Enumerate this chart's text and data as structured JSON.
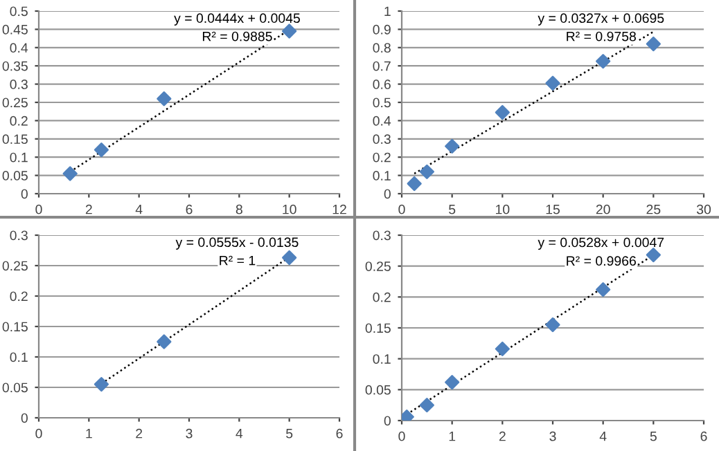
{
  "chart_data": [
    {
      "type": "scatter",
      "xlim": [
        0,
        12
      ],
      "xticks": [
        0,
        2,
        4,
        6,
        8,
        10,
        12
      ],
      "ylim": [
        0,
        0.5
      ],
      "yticks": [
        0,
        0.05,
        0.1,
        0.15,
        0.2,
        0.25,
        0.3,
        0.35,
        0.4,
        0.45,
        0.5
      ],
      "grid": "y",
      "marker": "diamond",
      "annotations": [
        "y = 0.0444x + 0.0045",
        "R² = 0.9885"
      ],
      "series": [
        {
          "color": "#4f81bd",
          "x": [
            1.25,
            2.5,
            5,
            10
          ],
          "values": [
            0.055,
            0.12,
            0.26,
            0.445
          ]
        },
        {
          "type": "line",
          "color": "#000000",
          "line_style": "dotted",
          "marker": "none",
          "x": [
            1.25,
            10
          ],
          "values": [
            0.06,
            0.449
          ]
        }
      ]
    },
    {
      "type": "scatter",
      "xlim": [
        0,
        30
      ],
      "xticks": [
        0,
        5,
        10,
        15,
        20,
        25,
        30
      ],
      "ylim": [
        0,
        1
      ],
      "yticks": [
        0,
        0.1,
        0.2,
        0.3,
        0.4,
        0.5,
        0.6,
        0.7,
        0.8,
        0.9,
        1
      ],
      "grid": "y",
      "marker": "diamond",
      "annotations": [
        "y = 0.0327x + 0.0695",
        "R² = 0.9758"
      ],
      "series": [
        {
          "color": "#4f81bd",
          "x": [
            1.25,
            2.5,
            5,
            10,
            15,
            20,
            25
          ],
          "values": [
            0.055,
            0.12,
            0.26,
            0.445,
            0.605,
            0.725,
            0.82
          ]
        },
        {
          "type": "line",
          "color": "#000000",
          "line_style": "dotted",
          "marker": "none",
          "x": [
            1.25,
            25
          ],
          "values": [
            0.11,
            0.887
          ]
        }
      ]
    },
    {
      "type": "scatter",
      "xlim": [
        0,
        6
      ],
      "xticks": [
        0,
        1,
        2,
        3,
        4,
        5,
        6
      ],
      "ylim": [
        0,
        0.3
      ],
      "yticks": [
        0,
        0.05,
        0.1,
        0.15,
        0.2,
        0.25,
        0.3
      ],
      "grid": "y",
      "marker": "diamond",
      "annotations": [
        "y = 0.0555x - 0.0135",
        "R² = 1"
      ],
      "series": [
        {
          "color": "#4f81bd",
          "x": [
            1.25,
            2.5,
            5
          ],
          "values": [
            0.055,
            0.125,
            0.263
          ]
        },
        {
          "type": "line",
          "color": "#000000",
          "line_style": "dotted",
          "marker": "none",
          "x": [
            1.25,
            5
          ],
          "values": [
            0.056,
            0.264
          ]
        }
      ]
    },
    {
      "type": "scatter",
      "xlim": [
        0,
        6
      ],
      "xticks": [
        0,
        1,
        2,
        3,
        4,
        5,
        6
      ],
      "ylim": [
        0,
        0.3
      ],
      "yticks": [
        0,
        0.05,
        0.1,
        0.15,
        0.2,
        0.25,
        0.3
      ],
      "grid": "y",
      "marker": "diamond",
      "annotations": [
        "y = 0.0528x + 0.0047",
        "R² = 0.9966"
      ],
      "series": [
        {
          "color": "#4f81bd",
          "x": [
            0.1,
            0.5,
            1,
            2,
            3,
            4,
            5
          ],
          "values": [
            0.006,
            0.025,
            0.062,
            0.116,
            0.155,
            0.212,
            0.268
          ]
        },
        {
          "type": "line",
          "color": "#000000",
          "line_style": "dotted",
          "marker": "none",
          "x": [
            0.1,
            5
          ],
          "values": [
            0.01,
            0.268
          ]
        }
      ]
    }
  ]
}
